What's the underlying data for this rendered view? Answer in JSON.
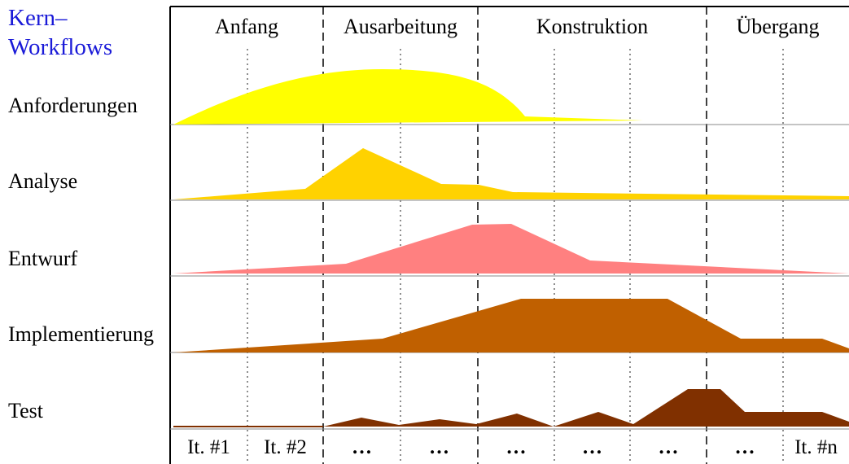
{
  "title_line1": "Kern–",
  "title_line2": "Workflows",
  "workflows": [
    "Anforderungen",
    "Analyse",
    "Entwurf",
    "Implementierung",
    "Test"
  ],
  "phases": [
    "Anfang",
    "Ausarbeitung",
    "Konstruktion",
    "Übergang"
  ],
  "iterations": [
    "It. #1",
    "It. #2",
    "…",
    "…",
    "…",
    "…",
    "…",
    "…",
    "It. #n"
  ],
  "colors": {
    "anforderungen": "#ffff00",
    "analyse": "#ffd200",
    "entwurf": "#ff8080",
    "implementierung": "#c06000",
    "test": "#803000",
    "title": "#1a1ad8"
  }
}
